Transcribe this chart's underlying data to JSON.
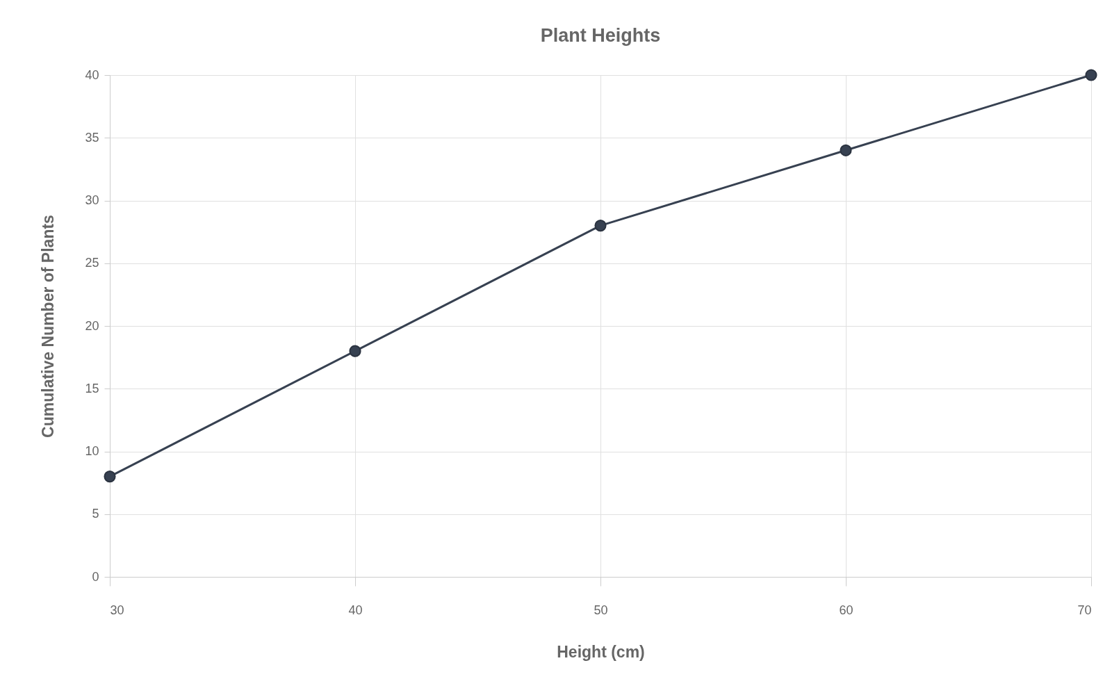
{
  "chart_data": {
    "type": "line",
    "title": "Plant Heights",
    "xlabel": "Height (cm)",
    "ylabel": "Cumulative Number of Plants",
    "x": [
      30,
      40,
      50,
      60,
      70
    ],
    "series": [
      {
        "color": "#374151",
        "values": [
          8,
          18,
          28,
          34,
          40
        ]
      }
    ],
    "xlim": [
      30,
      70
    ],
    "xticks": [
      30,
      40,
      50,
      60,
      70
    ],
    "ylim": [
      0,
      40
    ],
    "yticks": [
      0,
      5,
      10,
      15,
      20,
      25,
      30,
      35,
      40
    ],
    "grid": true,
    "marker": "circle",
    "line_style": "solid"
  }
}
